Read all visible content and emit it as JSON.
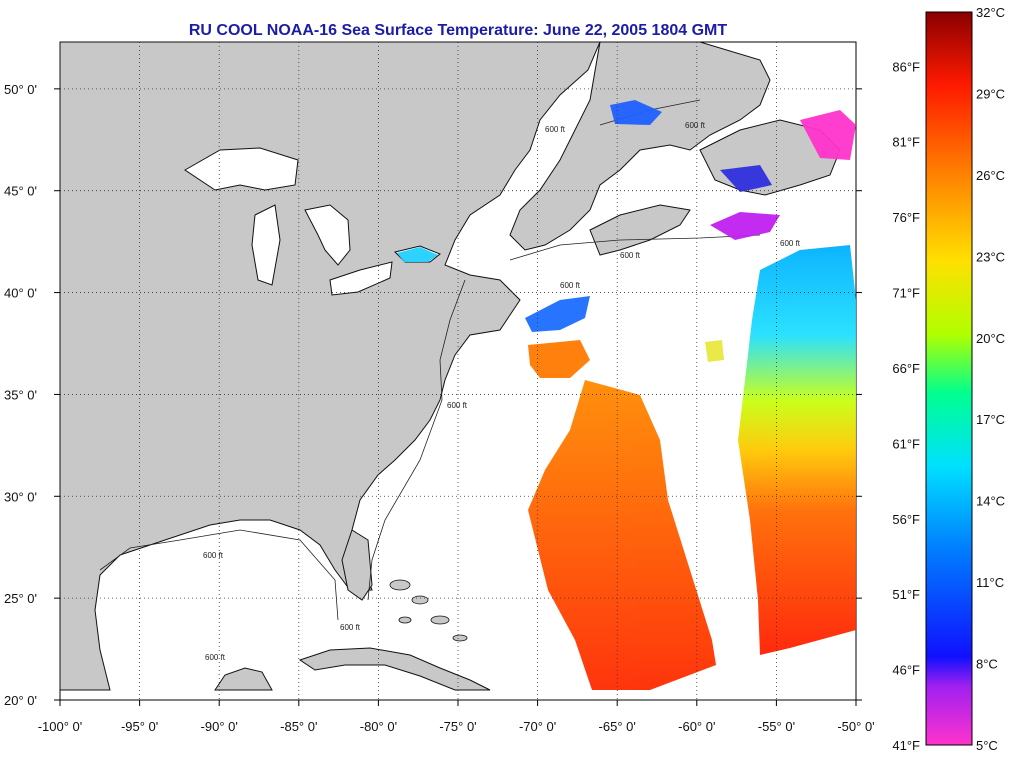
{
  "title": "RU COOL  NOAA-16  Sea Surface Temperature:  June 22, 2005 1804 GMT",
  "map": {
    "lon_range": [
      -100,
      -50
    ],
    "lat_range": [
      20,
      52.3
    ],
    "lon_ticks": [
      "-100° 0'",
      "-95° 0'",
      "-90° 0'",
      "-85° 0'",
      "-80° 0'",
      "-75° 0'",
      "-70° 0'",
      "-65° 0'",
      "-60° 0'",
      "-55° 0'",
      "-50° 0'"
    ],
    "lat_ticks": [
      "50° 0'",
      "45° 0'",
      "40° 0'",
      "35° 0'",
      "30° 0'",
      "25° 0'",
      "20° 0'"
    ],
    "lat_tick_values": [
      50,
      45,
      40,
      35,
      30,
      25,
      20
    ],
    "lon_tick_values": [
      -100,
      -95,
      -90,
      -85,
      -80,
      -75,
      -70,
      -65,
      -60,
      -55,
      -50
    ],
    "grid": "dotted",
    "land_color": "#c8c8c8",
    "contour_label": "600 ft"
  },
  "colorbar": {
    "range_c": [
      5,
      32
    ],
    "celsius_labels": [
      "32°C",
      "29°C",
      "26°C",
      "23°C",
      "20°C",
      "17°C",
      "14°C",
      "11°C",
      "8°C",
      "5°C"
    ],
    "celsius_values": [
      32,
      29,
      26,
      23,
      20,
      17,
      14,
      11,
      8,
      5
    ],
    "fahrenheit_labels": [
      "86°F",
      "81°F",
      "76°F",
      "71°F",
      "66°F",
      "61°F",
      "56°F",
      "51°F",
      "46°F",
      "41°F"
    ],
    "fahrenheit_values": [
      86,
      81,
      76,
      71,
      66,
      61,
      56,
      51,
      46,
      41
    ],
    "stops": [
      "#ff00ff",
      "#2222ff",
      "#0070ff",
      "#00d8ff",
      "#00ffa0",
      "#d0ff00",
      "#ffd800",
      "#ff8000",
      "#ff1a00",
      "#8b0000"
    ]
  }
}
